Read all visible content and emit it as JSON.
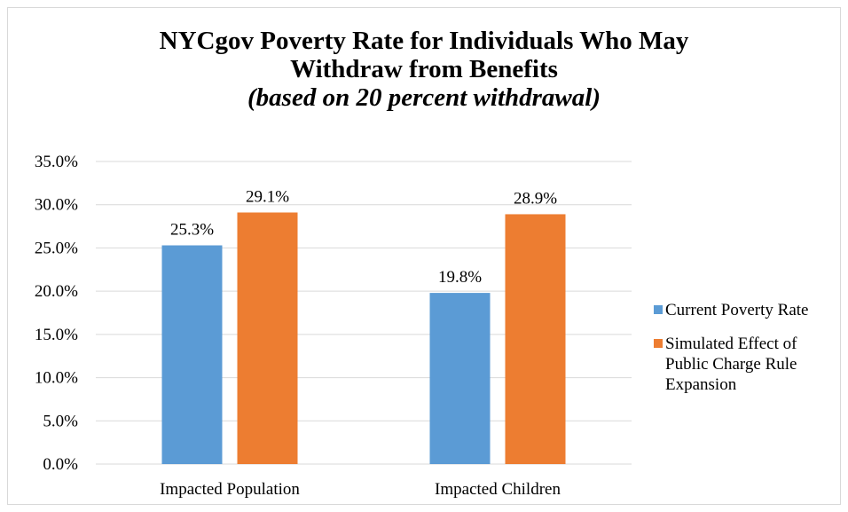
{
  "chart_data": {
    "type": "bar",
    "title_lines": [
      "NYCgov Poverty Rate for Individuals Who May",
      "Withdraw from Benefits"
    ],
    "subtitle": "(based on 20 percent withdrawal)",
    "categories": [
      "Impacted Population",
      "Impacted Children"
    ],
    "series": [
      {
        "name": "Current Poverty Rate",
        "color": "#5b9bd5",
        "values": [
          25.3,
          19.8
        ],
        "data_labels": [
          "25.3%",
          "19.8%"
        ]
      },
      {
        "name": "Simulated Effect of Public Charge Rule Expansion",
        "color": "#ed7d31",
        "values": [
          29.1,
          28.9
        ],
        "data_labels": [
          "29.1%",
          "28.9%"
        ]
      }
    ],
    "ylim": [
      0,
      35
    ],
    "yticks": [
      0,
      5,
      10,
      15,
      20,
      25,
      30,
      35
    ],
    "ytick_labels": [
      "0.0%",
      "5.0%",
      "10.0%",
      "15.0%",
      "20.0%",
      "25.0%",
      "30.0%",
      "35.0%"
    ],
    "grid": true,
    "gridline_color": "#d9d9d9",
    "legend_position": "right"
  }
}
